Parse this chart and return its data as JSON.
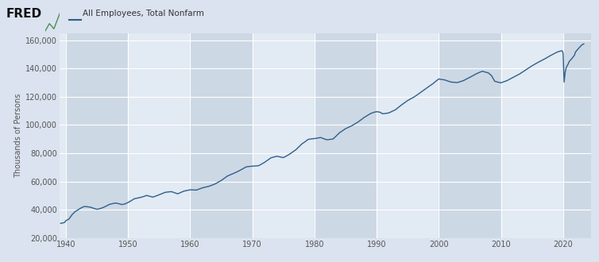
{
  "title": "All Employees, Total Nonfarm",
  "ylabel": "Thousands of Persons",
  "line_color": "#2e5f8a",
  "background_color": "#dae3ef",
  "plot_bg_color": "#dae3ef",
  "shade_light": "#e8eef5",
  "shade_dark": "#c8d5e3",
  "grid_color": "#ffffff",
  "ylim": [
    20000,
    165000
  ],
  "yticks": [
    20000,
    40000,
    60000,
    80000,
    100000,
    120000,
    140000,
    160000
  ],
  "xticks": [
    1940,
    1950,
    1960,
    1970,
    1980,
    1990,
    2000,
    2010,
    2020
  ],
  "xlim": [
    1939.0,
    2024.5
  ],
  "data": [
    [
      1939.17,
      30480
    ],
    [
      1939.33,
      30600
    ],
    [
      1939.5,
      30750
    ],
    [
      1939.67,
      31000
    ],
    [
      1939.83,
      31200
    ],
    [
      1940.0,
      32376
    ],
    [
      1940.5,
      33500
    ],
    [
      1941.0,
      36554
    ],
    [
      1941.5,
      38800
    ],
    [
      1942.0,
      40125
    ],
    [
      1942.5,
      41500
    ],
    [
      1943.0,
      42470
    ],
    [
      1943.5,
      42200
    ],
    [
      1944.0,
      41883
    ],
    [
      1944.5,
      41100
    ],
    [
      1945.0,
      40394
    ],
    [
      1945.5,
      40900
    ],
    [
      1946.0,
      41674
    ],
    [
      1946.5,
      42700
    ],
    [
      1947.0,
      43881
    ],
    [
      1947.5,
      44400
    ],
    [
      1948.0,
      44882
    ],
    [
      1948.5,
      44400
    ],
    [
      1949.0,
      43778
    ],
    [
      1949.5,
      44200
    ],
    [
      1950.0,
      45197
    ],
    [
      1950.5,
      46400
    ],
    [
      1951.0,
      47849
    ],
    [
      1951.5,
      48300
    ],
    [
      1952.0,
      48793
    ],
    [
      1952.5,
      49400
    ],
    [
      1953.0,
      50224
    ],
    [
      1953.5,
      49600
    ],
    [
      1954.0,
      49022
    ],
    [
      1954.5,
      49800
    ],
    [
      1955.0,
      50641
    ],
    [
      1955.5,
      51500
    ],
    [
      1956.0,
      52408
    ],
    [
      1956.5,
      52700
    ],
    [
      1957.0,
      52893
    ],
    [
      1957.5,
      52100
    ],
    [
      1958.0,
      51363
    ],
    [
      1958.5,
      52300
    ],
    [
      1959.0,
      53270
    ],
    [
      1959.5,
      53700
    ],
    [
      1960.0,
      54189
    ],
    [
      1960.5,
      54100
    ],
    [
      1961.0,
      53999
    ],
    [
      1961.5,
      54800
    ],
    [
      1962.0,
      55596
    ],
    [
      1962.5,
      56100
    ],
    [
      1963.0,
      56653
    ],
    [
      1963.5,
      57500
    ],
    [
      1964.0,
      58283
    ],
    [
      1964.5,
      59500
    ],
    [
      1965.0,
      60765
    ],
    [
      1965.5,
      62300
    ],
    [
      1966.0,
      63901
    ],
    [
      1966.5,
      64900
    ],
    [
      1967.0,
      65803
    ],
    [
      1967.5,
      66800
    ],
    [
      1968.0,
      67897
    ],
    [
      1968.5,
      69100
    ],
    [
      1969.0,
      70384
    ],
    [
      1969.5,
      70700
    ],
    [
      1970.0,
      70880
    ],
    [
      1970.5,
      71000
    ],
    [
      1971.0,
      71211
    ],
    [
      1971.5,
      72400
    ],
    [
      1972.0,
      73675
    ],
    [
      1972.5,
      75200
    ],
    [
      1973.0,
      76790
    ],
    [
      1973.5,
      77400
    ],
    [
      1974.0,
      77929
    ],
    [
      1974.5,
      77400
    ],
    [
      1975.0,
      76945
    ],
    [
      1975.5,
      78100
    ],
    [
      1976.0,
      79382
    ],
    [
      1976.5,
      80900
    ],
    [
      1977.0,
      82471
    ],
    [
      1977.5,
      84600
    ],
    [
      1978.0,
      86697
    ],
    [
      1978.5,
      88200
    ],
    [
      1979.0,
      89823
    ],
    [
      1979.5,
      90200
    ],
    [
      1980.0,
      90406
    ],
    [
      1980.5,
      90800
    ],
    [
      1981.0,
      91151
    ],
    [
      1981.5,
      90300
    ],
    [
      1982.0,
      89566
    ],
    [
      1982.5,
      89800
    ],
    [
      1983.0,
      90151
    ],
    [
      1983.5,
      92200
    ],
    [
      1984.0,
      94408
    ],
    [
      1984.5,
      95900
    ],
    [
      1985.0,
      97387
    ],
    [
      1985.5,
      98400
    ],
    [
      1986.0,
      99474
    ],
    [
      1986.5,
      100800
    ],
    [
      1987.0,
      102058
    ],
    [
      1987.5,
      103700
    ],
    [
      1988.0,
      105345
    ],
    [
      1988.5,
      106700
    ],
    [
      1989.0,
      108014
    ],
    [
      1989.5,
      108900
    ],
    [
      1990.0,
      109403
    ],
    [
      1990.5,
      109100
    ],
    [
      1991.0,
      107922
    ],
    [
      1991.5,
      108200
    ],
    [
      1992.0,
      108604
    ],
    [
      1992.5,
      109700
    ],
    [
      1993.0,
      110679
    ],
    [
      1993.5,
      112400
    ],
    [
      1994.0,
      114142
    ],
    [
      1994.5,
      115700
    ],
    [
      1995.0,
      117298
    ],
    [
      1995.5,
      118500
    ],
    [
      1996.0,
      119708
    ],
    [
      1996.5,
      121200
    ],
    [
      1997.0,
      122776
    ],
    [
      1997.5,
      124300
    ],
    [
      1998.0,
      125930
    ],
    [
      1998.5,
      127500
    ],
    [
      1999.0,
      128993
    ],
    [
      1999.5,
      130800
    ],
    [
      2000.0,
      132523
    ],
    [
      2000.5,
      132200
    ],
    [
      2001.0,
      131826
    ],
    [
      2001.5,
      131000
    ],
    [
      2002.0,
      130341
    ],
    [
      2002.5,
      130200
    ],
    [
      2003.0,
      129999
    ],
    [
      2003.5,
      130700
    ],
    [
      2004.0,
      131418
    ],
    [
      2004.5,
      132600
    ],
    [
      2005.0,
      133703
    ],
    [
      2005.5,
      134900
    ],
    [
      2006.0,
      136086
    ],
    [
      2006.5,
      137100
    ],
    [
      2007.0,
      137982
    ],
    [
      2007.5,
      137400
    ],
    [
      2008.0,
      136790
    ],
    [
      2008.5,
      134800
    ],
    [
      2009.0,
      130916
    ],
    [
      2009.5,
      130300
    ],
    [
      2010.0,
      129818
    ],
    [
      2010.5,
      130600
    ],
    [
      2011.0,
      131395
    ],
    [
      2011.5,
      132600
    ],
    [
      2012.0,
      133732
    ],
    [
      2012.5,
      134900
    ],
    [
      2013.0,
      136047
    ],
    [
      2013.5,
      137500
    ],
    [
      2014.0,
      138940
    ],
    [
      2014.5,
      140400
    ],
    [
      2015.0,
      141827
    ],
    [
      2015.5,
      143100
    ],
    [
      2016.0,
      144340
    ],
    [
      2016.5,
      145500
    ],
    [
      2017.0,
      146619
    ],
    [
      2017.5,
      147900
    ],
    [
      2018.0,
      149150
    ],
    [
      2018.5,
      150300
    ],
    [
      2019.0,
      151439
    ],
    [
      2019.5,
      152200
    ],
    [
      2019.83,
      152500
    ],
    [
      2020.0,
      150900
    ],
    [
      2020.17,
      130300
    ],
    [
      2020.33,
      137000
    ],
    [
      2020.5,
      140500
    ],
    [
      2020.67,
      142000
    ],
    [
      2020.83,
      143200
    ],
    [
      2021.0,
      144978
    ],
    [
      2021.17,
      145800
    ],
    [
      2021.33,
      146500
    ],
    [
      2021.5,
      147500
    ],
    [
      2021.67,
      148400
    ],
    [
      2021.83,
      149300
    ],
    [
      2022.0,
      151591
    ],
    [
      2022.17,
      152500
    ],
    [
      2022.33,
      153300
    ],
    [
      2022.5,
      154200
    ],
    [
      2022.67,
      155000
    ],
    [
      2022.83,
      155700
    ],
    [
      2023.0,
      156500
    ],
    [
      2023.17,
      157000
    ],
    [
      2023.33,
      157300
    ]
  ]
}
